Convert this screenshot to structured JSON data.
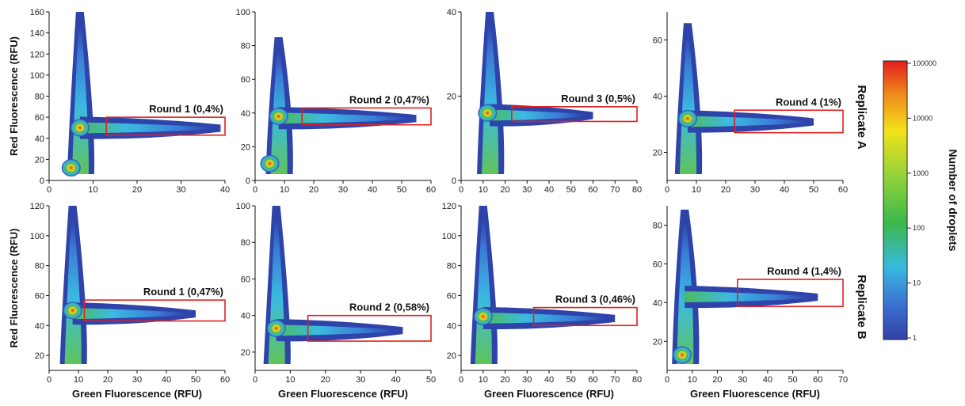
{
  "figure": {
    "xlabel": "Green Fluorescence (RFU)",
    "ylabel": "Red Fluorescence (RFU)",
    "replicates": [
      "Replicate A",
      "Replicate B"
    ],
    "colorbar": {
      "title": "Number of droplets",
      "ticks": [
        "100000",
        "10000",
        "1000",
        "100",
        "10",
        "1"
      ],
      "colors": [
        "#e11d1d",
        "#f08a1c",
        "#f3e21a",
        "#8fd23a",
        "#3cb84a",
        "#39b9df",
        "#3a6fd0",
        "#3340a8"
      ]
    }
  },
  "chart_data": [
    {
      "type": "heatmap",
      "panel": "A-1",
      "xlim": [
        0,
        40
      ],
      "ylim": [
        0,
        160
      ],
      "xticks": [
        0,
        10,
        20,
        30,
        40
      ],
      "yticks": [
        0,
        20,
        40,
        60,
        80,
        100,
        120,
        140,
        160
      ],
      "gate": {
        "label": "Round 1 (0,4%)",
        "x": [
          13,
          40
        ],
        "y": [
          43,
          60
        ]
      },
      "population": {
        "x": 7,
        "y": 50,
        "hot": [
          [
            5,
            12
          ],
          [
            7,
            50
          ]
        ],
        "arm_x_end": 39,
        "stem_y_top": 160
      }
    },
    {
      "type": "heatmap",
      "panel": "A-2",
      "xlim": [
        0,
        60
      ],
      "ylim": [
        0,
        100
      ],
      "xticks": [
        0,
        10,
        20,
        30,
        40,
        50,
        60
      ],
      "yticks": [
        0,
        20,
        40,
        60,
        80,
        100
      ],
      "gate": {
        "label": "Round 2 (0,47%)",
        "x": [
          16,
          60
        ],
        "y": [
          33,
          43
        ]
      },
      "population": {
        "x": 8,
        "y": 37,
        "hot": [
          [
            8,
            38
          ],
          [
            5,
            10
          ]
        ],
        "arm_x_end": 55,
        "stem_y_top": 85
      }
    },
    {
      "type": "heatmap",
      "panel": "A-3",
      "xlim": [
        0,
        80
      ],
      "ylim": [
        0,
        40
      ],
      "xticks": [
        0,
        10,
        20,
        30,
        40,
        50,
        60,
        70,
        80
      ],
      "yticks": [
        0,
        20,
        40
      ],
      "gate": {
        "label": "Round 3 (0,5%)",
        "x": [
          23,
          80
        ],
        "y": [
          14,
          17.5
        ]
      },
      "population": {
        "x": 13,
        "y": 15.5,
        "hot": [
          [
            12,
            16
          ]
        ],
        "arm_x_end": 60,
        "stem_y_top": 40
      }
    },
    {
      "type": "heatmap",
      "panel": "A-4",
      "xlim": [
        0,
        60
      ],
      "ylim": [
        10,
        70
      ],
      "xticks": [
        0,
        10,
        20,
        30,
        40,
        50,
        60
      ],
      "yticks": [
        20,
        40,
        60
      ],
      "gate": {
        "label": "Round 4 (1%)",
        "x": [
          23,
          60
        ],
        "y": [
          27,
          35
        ]
      },
      "population": {
        "x": 7,
        "y": 31,
        "hot": [
          [
            7,
            32
          ]
        ],
        "arm_x_end": 50,
        "stem_y_top": 66
      }
    },
    {
      "type": "heatmap",
      "panel": "B-1",
      "xlim": [
        0,
        60
      ],
      "ylim": [
        10,
        120
      ],
      "xticks": [
        0,
        10,
        20,
        30,
        40,
        50,
        60
      ],
      "yticks": [
        20,
        40,
        60,
        80,
        100,
        120
      ],
      "gate": {
        "label": "Round 1 (0,47%)",
        "x": [
          12,
          60
        ],
        "y": [
          43,
          57
        ]
      },
      "population": {
        "x": 8,
        "y": 48,
        "hot": [
          [
            8,
            50
          ]
        ],
        "arm_x_end": 50,
        "stem_y_top": 120
      }
    },
    {
      "type": "heatmap",
      "panel": "B-2",
      "xlim": [
        0,
        50
      ],
      "ylim": [
        10,
        100
      ],
      "xticks": [
        0,
        10,
        20,
        30,
        40,
        50
      ],
      "yticks": [
        20,
        40,
        60,
        80,
        100
      ],
      "gate": {
        "label": "Round 2 (0,58%)",
        "x": [
          15,
          50
        ],
        "y": [
          26,
          40
        ]
      },
      "population": {
        "x": 6,
        "y": 32,
        "hot": [
          [
            6,
            33
          ]
        ],
        "arm_x_end": 42,
        "stem_y_top": 100
      }
    },
    {
      "type": "heatmap",
      "panel": "B-3",
      "xlim": [
        0,
        80
      ],
      "ylim": [
        10,
        120
      ],
      "xticks": [
        0,
        10,
        20,
        30,
        40,
        50,
        60,
        70,
        80
      ],
      "yticks": [
        20,
        40,
        60,
        80,
        100,
        120
      ],
      "gate": {
        "label": "Round 3 (0,46%)",
        "x": [
          33,
          80
        ],
        "y": [
          40,
          52
        ]
      },
      "population": {
        "x": 10,
        "y": 45,
        "hot": [
          [
            10,
            46
          ]
        ],
        "arm_x_end": 70,
        "stem_y_top": 120
      }
    },
    {
      "type": "heatmap",
      "panel": "B-4",
      "xlim": [
        0,
        70
      ],
      "ylim": [
        5,
        90
      ],
      "xticks": [
        0,
        10,
        20,
        30,
        40,
        50,
        60,
        70
      ],
      "yticks": [
        20,
        40,
        60,
        80
      ],
      "gate": {
        "label": "Round 4 (1,4%)",
        "x": [
          28,
          70
        ],
        "y": [
          38,
          52
        ]
      },
      "population": {
        "x": 7,
        "y": 43,
        "hot": [
          [
            6,
            13
          ]
        ],
        "arm_x_end": 60,
        "stem_y_top": 88
      }
    }
  ]
}
